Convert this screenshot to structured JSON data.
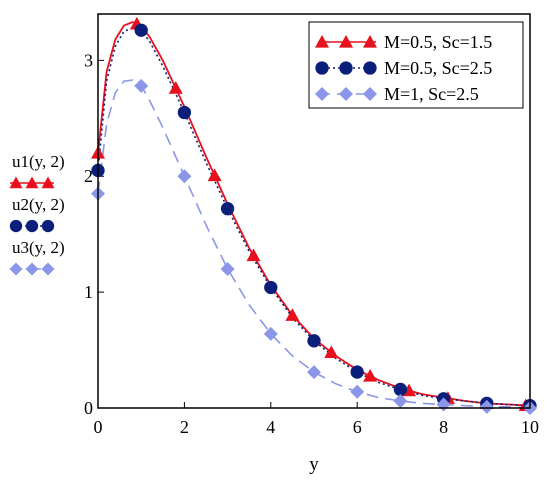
{
  "chart_data": {
    "type": "line",
    "xlabel": "y",
    "xlim": [
      0,
      10
    ],
    "ylim": [
      0,
      3.4
    ],
    "x_ticks": [
      "0",
      "2",
      "4",
      "6",
      "8",
      "10"
    ],
    "y_ticks": [
      "0",
      "1",
      "2",
      "3"
    ],
    "grid": false,
    "legend_position": "top-right",
    "series": [
      {
        "name": "M=0.5, Sc=1.5",
        "axis_label": "u1(y, 2)",
        "color": "#e8101c",
        "line": "solid",
        "marker": "triangle",
        "x": [
          0,
          0.2,
          0.4,
          0.6,
          0.8,
          1.0,
          1.2,
          1.5,
          2.0,
          2.5,
          3.0,
          3.5,
          4.0,
          4.5,
          5.0,
          5.5,
          6.0,
          6.5,
          7.0,
          7.5,
          8.0,
          8.5,
          9.0,
          9.5,
          10.0
        ],
        "y": [
          2.2,
          2.9,
          3.18,
          3.3,
          3.33,
          3.3,
          3.2,
          3.0,
          2.6,
          2.17,
          1.76,
          1.38,
          1.06,
          0.8,
          0.6,
          0.45,
          0.33,
          0.24,
          0.17,
          0.12,
          0.09,
          0.06,
          0.04,
          0.03,
          0.02
        ]
      },
      {
        "name": "M=0.5, Sc=2.5",
        "axis_label": "u2(y, 2)",
        "color": "#0a1f7a",
        "line": "dotted",
        "marker": "circle",
        "x": [
          0,
          0.2,
          0.4,
          0.6,
          0.8,
          1.0,
          1.2,
          1.5,
          2.0,
          2.5,
          3.0,
          3.5,
          4.0,
          4.5,
          5.0,
          5.5,
          6.0,
          6.5,
          7.0,
          7.5,
          8.0,
          8.5,
          9.0,
          9.5,
          10.0
        ],
        "y": [
          2.05,
          2.82,
          3.12,
          3.25,
          3.28,
          3.26,
          3.16,
          2.95,
          2.55,
          2.12,
          1.72,
          1.35,
          1.04,
          0.78,
          0.58,
          0.43,
          0.31,
          0.22,
          0.16,
          0.11,
          0.08,
          0.06,
          0.04,
          0.03,
          0.02
        ]
      },
      {
        "name": "M=1, Sc=2.5",
        "axis_label": "u3(y, 2)",
        "color": "#8c96e8",
        "line": "dashed",
        "marker": "diamond",
        "x": [
          0,
          0.2,
          0.4,
          0.6,
          0.8,
          1.0,
          1.2,
          1.5,
          2.0,
          2.5,
          3.0,
          3.5,
          4.0,
          4.5,
          5.0,
          5.5,
          6.0,
          6.5,
          7.0,
          7.5,
          8.0,
          8.5,
          9.0,
          9.5,
          10.0
        ],
        "y": [
          1.85,
          2.45,
          2.72,
          2.82,
          2.83,
          2.78,
          2.65,
          2.42,
          2.0,
          1.58,
          1.2,
          0.89,
          0.64,
          0.45,
          0.31,
          0.21,
          0.14,
          0.09,
          0.06,
          0.04,
          0.03,
          0.02,
          0.01,
          0.01,
          0.0
        ]
      }
    ]
  }
}
